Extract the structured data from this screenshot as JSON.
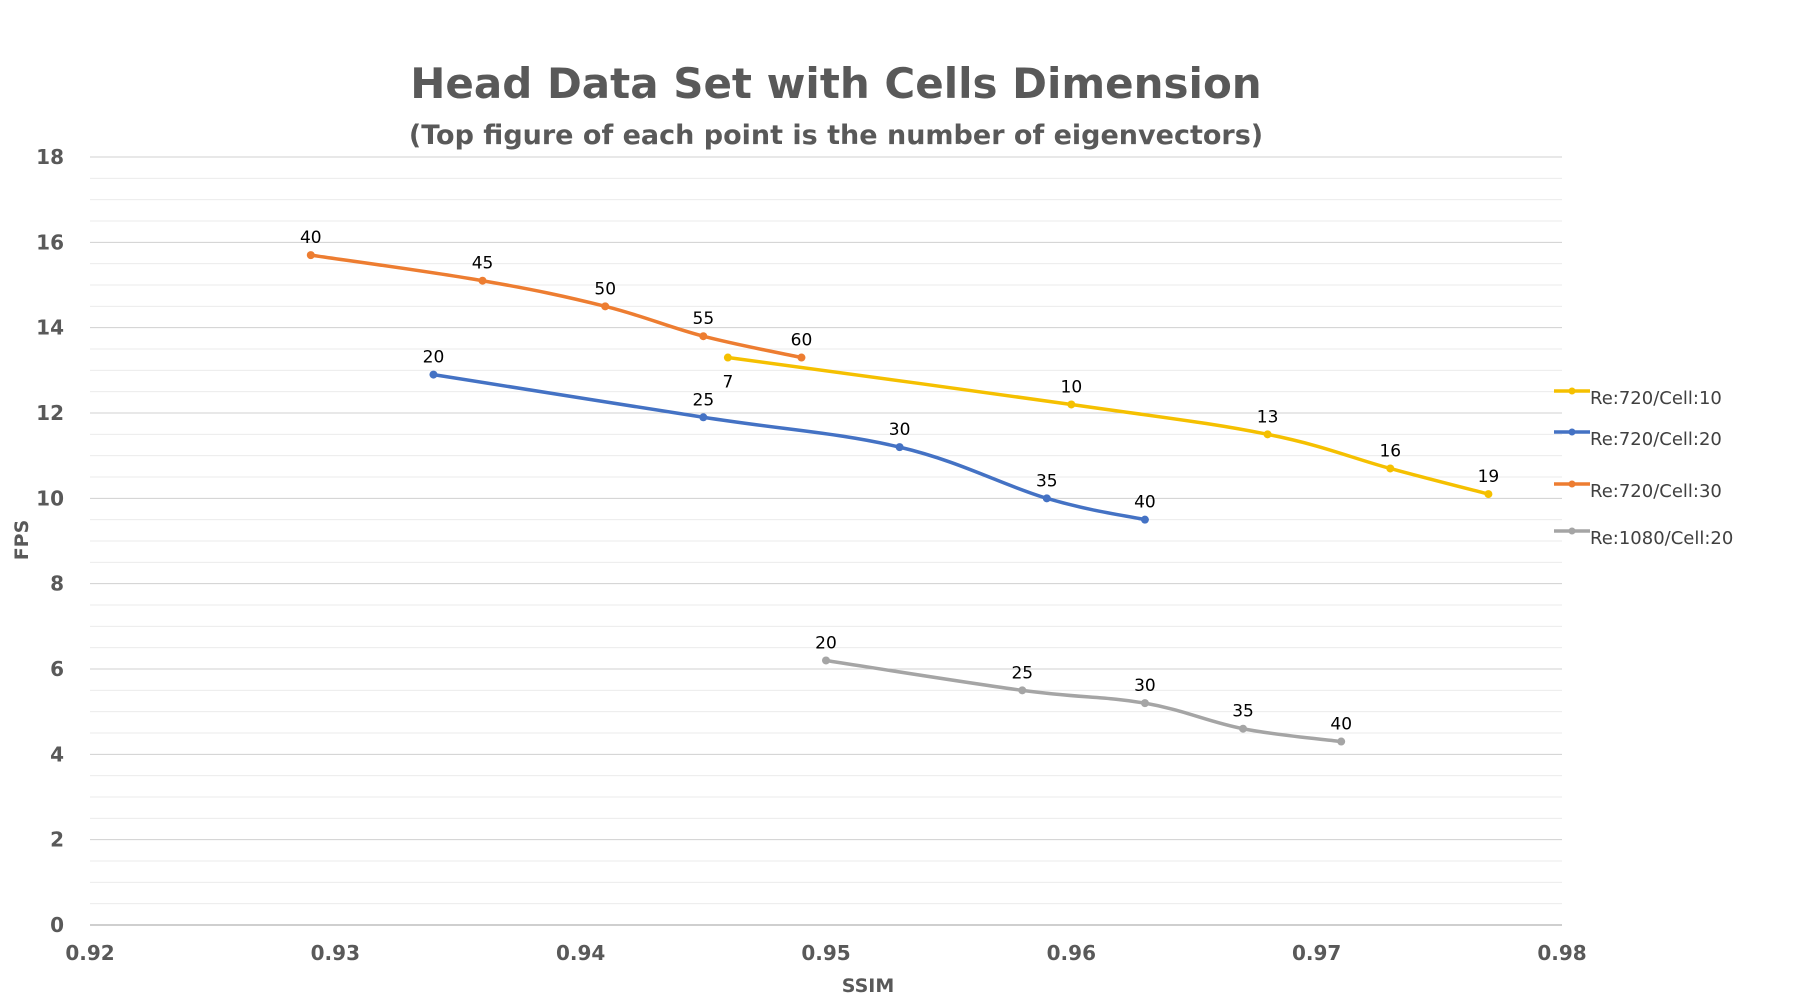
{
  "chart_data": {
    "type": "line",
    "title": "Head Data Set with Cells Dimension",
    "subtitle": "(Top figure of each point is the number of eigenvectors)",
    "xlabel": "SSIM",
    "ylabel": "FPS",
    "xlim": [
      0.92,
      0.98
    ],
    "ylim": [
      0,
      18
    ],
    "xticks": [
      0.92,
      0.93,
      0.94,
      0.95,
      0.96,
      0.97,
      0.98
    ],
    "xtick_labels": [
      "0.92",
      "0.93",
      "0.94",
      "0.95",
      "0.96",
      "0.97",
      "0.98"
    ],
    "yticks": [
      0,
      2,
      4,
      6,
      8,
      10,
      12,
      14,
      16,
      18
    ],
    "ytick_labels": [
      "0",
      "2",
      "4",
      "6",
      "8",
      "10",
      "12",
      "14",
      "16",
      "18"
    ],
    "grid": true,
    "legend_position": "right",
    "series": [
      {
        "name": "Re:720/Cell:10",
        "color": "#F5C000",
        "points": [
          {
            "x": 0.946,
            "y": 13.3,
            "label": "7",
            "label_pos": "below"
          },
          {
            "x": 0.96,
            "y": 12.2,
            "label": "10",
            "label_pos": "above"
          },
          {
            "x": 0.968,
            "y": 11.5,
            "label": "13",
            "label_pos": "above"
          },
          {
            "x": 0.973,
            "y": 10.7,
            "label": "16",
            "label_pos": "above"
          },
          {
            "x": 0.977,
            "y": 10.1,
            "label": "19",
            "label_pos": "above"
          }
        ]
      },
      {
        "name": "Re:720/Cell:20",
        "color": "#4472C4",
        "points": [
          {
            "x": 0.934,
            "y": 12.9,
            "label": "20",
            "label_pos": "above"
          },
          {
            "x": 0.945,
            "y": 11.9,
            "label": "25",
            "label_pos": "above"
          },
          {
            "x": 0.953,
            "y": 11.2,
            "label": "30",
            "label_pos": "above"
          },
          {
            "x": 0.959,
            "y": 10.0,
            "label": "35",
            "label_pos": "above"
          },
          {
            "x": 0.963,
            "y": 9.5,
            "label": "40",
            "label_pos": "above"
          }
        ]
      },
      {
        "name": "Re:720/Cell:30",
        "color": "#ED7D31",
        "points": [
          {
            "x": 0.929,
            "y": 15.7,
            "label": "40",
            "label_pos": "above"
          },
          {
            "x": 0.936,
            "y": 15.1,
            "label": "45",
            "label_pos": "above"
          },
          {
            "x": 0.941,
            "y": 14.5,
            "label": "50",
            "label_pos": "above"
          },
          {
            "x": 0.945,
            "y": 13.8,
            "label": "55",
            "label_pos": "above"
          },
          {
            "x": 0.949,
            "y": 13.3,
            "label": "60",
            "label_pos": "above"
          }
        ]
      },
      {
        "name": "Re:1080/Cell:20",
        "color": "#A5A5A5",
        "points": [
          {
            "x": 0.95,
            "y": 6.2,
            "label": "20",
            "label_pos": "above"
          },
          {
            "x": 0.958,
            "y": 5.5,
            "label": "25",
            "label_pos": "above"
          },
          {
            "x": 0.963,
            "y": 5.2,
            "label": "30",
            "label_pos": "above"
          },
          {
            "x": 0.967,
            "y": 4.6,
            "label": "35",
            "label_pos": "above"
          },
          {
            "x": 0.971,
            "y": 4.3,
            "label": "40",
            "label_pos": "above"
          }
        ]
      }
    ]
  }
}
